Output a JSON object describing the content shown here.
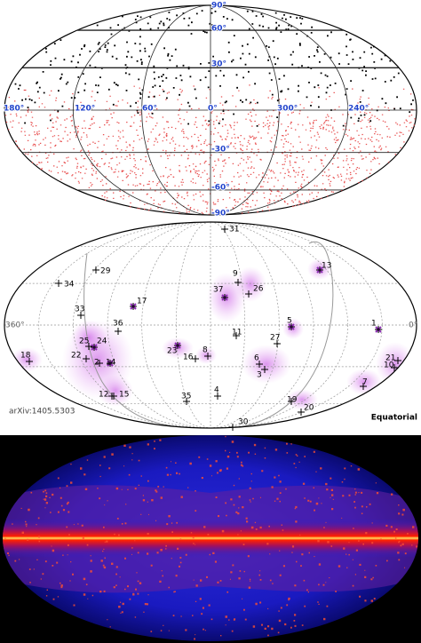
{
  "panel1": {
    "lat_labels": [
      "90°",
      "60°",
      "30°",
      "-30°",
      "-60°",
      "-90°"
    ],
    "lon_labels": [
      "180°",
      "120°",
      "60°",
      "0°",
      "300°",
      "240°"
    ]
  },
  "panel2": {
    "lon_left": "360°",
    "lon_right": "0°",
    "events": [
      "1",
      "2",
      "3",
      "4",
      "5",
      "6",
      "7",
      "8",
      "9",
      "10",
      "11",
      "12",
      "13",
      "14",
      "15",
      "16",
      "17",
      "18",
      "19",
      "20",
      "21",
      "22",
      "23",
      "24",
      "25",
      "26",
      "27",
      "29",
      "30",
      "31",
      "33",
      "34",
      "35",
      "36",
      "37"
    ],
    "credit": "arXiv:1405.5303",
    "coord_label": "Equatorial"
  }
}
